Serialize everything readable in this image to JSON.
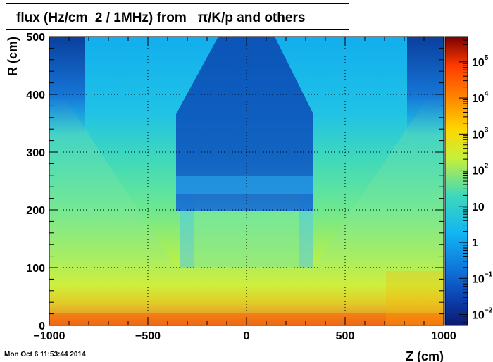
{
  "chart_data": {
    "type": "heatmap",
    "title": "flux (Hz/cm  2 / 1MHz) from   π/K/p and others",
    "xlabel": "Z (cm)",
    "ylabel": "R (cm)",
    "xlim": [
      -1000,
      1000
    ],
    "ylim": [
      0,
      500
    ],
    "x_ticks": [
      -1000,
      -500,
      0,
      500,
      1000
    ],
    "x_tick_labels": [
      "−1000",
      "−500",
      "0",
      "500",
      "1000"
    ],
    "y_ticks": [
      0,
      100,
      200,
      300,
      400,
      500
    ],
    "y_tick_labels": [
      "0",
      "100",
      "200",
      "300",
      "400",
      "500"
    ],
    "grid": true,
    "z_scale": "log",
    "colorbar": {
      "zlim": [
        0.005,
        500000
      ],
      "labels": [
        {
          "base": "10",
          "exp": "−2",
          "value": 0.01
        },
        {
          "base": "10",
          "exp": "−1",
          "value": 0.1
        },
        {
          "base": "1",
          "exp": "",
          "value": 1
        },
        {
          "base": "10",
          "exp": "",
          "value": 10
        },
        {
          "base": "10",
          "exp": "2",
          "value": 100
        },
        {
          "base": "10",
          "exp": "3",
          "value": 1000
        },
        {
          "base": "10",
          "exp": "4",
          "value": 10000
        },
        {
          "base": "10",
          "exp": "5",
          "value": 100000
        }
      ]
    }
  },
  "footer": {
    "timestamp": "Mon Oct  6 11:53:44 2014"
  }
}
